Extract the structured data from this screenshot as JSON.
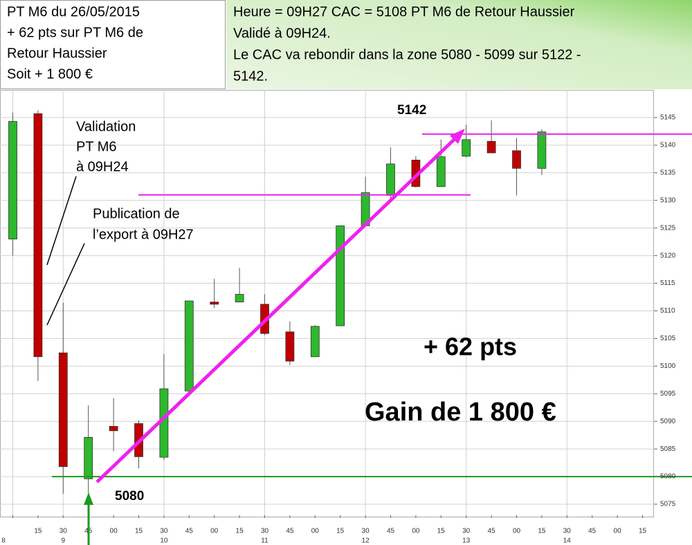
{
  "chart_data": {
    "type": "candlestick",
    "header_left": [
      "PT M6 du  26/05/2015",
      "+ 62 pts sur PT M6 de",
      "Retour Haussier",
      "Soit + 1 800 €"
    ],
    "header_right": [
      "Heure = 09H27 CAC = 5108 PT M6 de Retour Haussier",
      "Validé à 09H24.",
      "Le CAC va rebondir dans la zone 5080 -  5099 sur 5122 -",
      "5142."
    ],
    "categories": [
      null,
      "15",
      "30",
      "45",
      "00",
      "15",
      "30",
      "45",
      "00",
      "15",
      "30",
      "45",
      "00",
      "15",
      "30",
      "45",
      "00",
      "15",
      "30",
      "45",
      "00",
      "15",
      "30",
      "45",
      "00",
      "15"
    ],
    "hour_labels": [
      "8",
      null,
      "9",
      null,
      null,
      null,
      "10",
      null,
      null,
      null,
      "11",
      null,
      null,
      null,
      "12",
      null,
      null,
      null,
      "13",
      null,
      null,
      null,
      "14",
      null,
      null,
      null
    ],
    "open": [
      5123.0,
      5145.7,
      5102.4,
      5079.6,
      5089.1,
      5089.6,
      5083.5,
      5095.5,
      5111.6,
      5111.6,
      5111.2,
      5106.2,
      5101.7,
      5107.3,
      5125.4,
      5130.9,
      5137.3,
      5132.5,
      5138.0,
      5140.7,
      5139.0,
      5135.8,
      null,
      null,
      null,
      null
    ],
    "high": [
      5145.9,
      5146.3,
      5111.5,
      5092.9,
      5094.2,
      5090.2,
      5102.2,
      5111.8,
      5115.8,
      5117.8,
      5113.0,
      5108.1,
      5107.4,
      5125.4,
      5134.3,
      5139.6,
      5138.0,
      5141.0,
      5143.7,
      5144.5,
      5141.3,
      5142.9,
      null,
      null,
      null,
      null
    ],
    "low": [
      5120.0,
      5097.3,
      5076.9,
      5076.9,
      5084.6,
      5081.5,
      5083.0,
      5095.2,
      5110.5,
      5111.6,
      5105.6,
      5100.2,
      5101.7,
      5107.3,
      5125.4,
      5130.0,
      5132.3,
      5132.5,
      5137.8,
      5138.6,
      5130.9,
      5134.6,
      null,
      null,
      null,
      null
    ],
    "close": [
      5144.3,
      5101.7,
      5081.8,
      5087.1,
      5088.3,
      5083.6,
      5095.9,
      5111.8,
      5111.2,
      5113.0,
      5105.9,
      5100.9,
      5107.2,
      5125.4,
      5131.4,
      5136.6,
      5132.5,
      5137.9,
      5141.0,
      5138.6,
      5135.8,
      5142.4,
      null,
      null,
      null,
      null
    ],
    "up_color": "#2db82d",
    "down_color": "#c00000",
    "ylim": [
      5073,
      5150
    ],
    "yticks": [
      5075,
      5080,
      5085,
      5090,
      5095,
      5100,
      5105,
      5110,
      5115,
      5120,
      5125,
      5130,
      5135,
      5140,
      5145
    ],
    "grid": true,
    "reference_lines": [
      {
        "value": 5142,
        "color": "#ee22ee"
      },
      {
        "value": 5131,
        "color": "#ee22ee"
      },
      {
        "value": 5080,
        "color": "#1a9a1a"
      }
    ],
    "annotations": {
      "validation": [
        "Validation",
        "PT M6",
        "à 09H24"
      ],
      "publication": [
        "Publication de",
        "l’export à 09H27"
      ],
      "points": "+ 62 pts",
      "gain": "Gain de 1 800 €"
    }
  }
}
